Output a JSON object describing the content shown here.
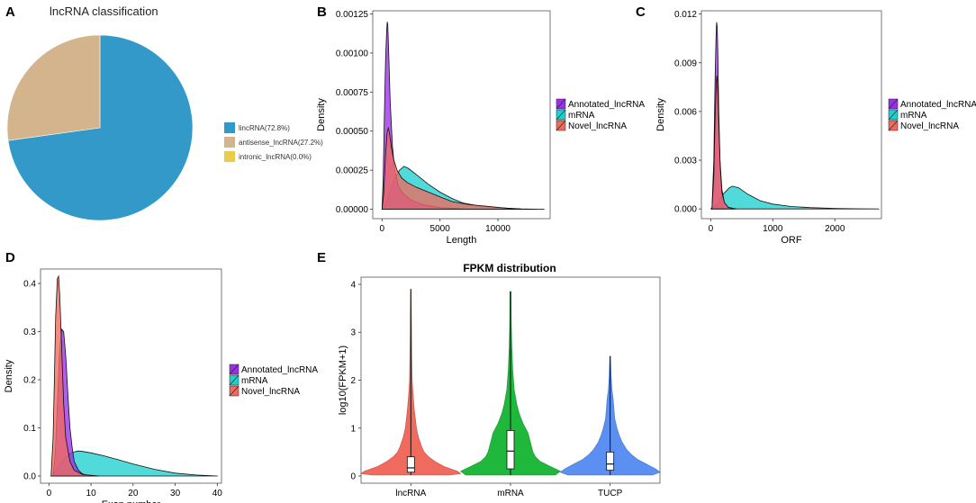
{
  "chart_data": [
    {
      "id": "A",
      "type": "pie",
      "panel_label": "A",
      "title": "lncRNA classification",
      "slices": [
        {
          "label": "lincRNA(72.8%)",
          "value": 72.8,
          "color": "#3399c9"
        },
        {
          "label": "antisense_lncRNA(27.2%)",
          "value": 27.2,
          "color": "#d4b48c"
        },
        {
          "label": "intronic_lncRNA(0.0%)",
          "value": 0.0,
          "color": "#e8cc4a"
        }
      ],
      "legend_position": "right"
    },
    {
      "id": "B",
      "type": "area",
      "panel_label": "B",
      "xlabel": "Length",
      "ylabel": "Density",
      "xlim": [
        -800,
        14500
      ],
      "ylim": [
        -6e-05,
        0.00127
      ],
      "xticks": [
        0,
        5000,
        10000
      ],
      "xtick_labels": [
        "0",
        "5000",
        "10000"
      ],
      "yticks": [
        0,
        0.00025,
        0.0005,
        0.00075,
        0.001,
        0.00125
      ],
      "ytick_labels": [
        "0.00000",
        "0.00025",
        "0.00050",
        "0.00075",
        "0.00100",
        "0.00125"
      ],
      "legend": [
        "Annotated_lncRNA",
        "mRNA",
        "Novel_lncRNA"
      ],
      "legend_position": "right",
      "series": [
        {
          "name": "mRNA",
          "color": "#1fcfcf",
          "x": [
            0,
            300,
            700,
            1000,
            1500,
            1900,
            2300,
            3000,
            4000,
            5000,
            6000,
            7000,
            8500,
            10000,
            12000,
            14000
          ],
          "y": [
            0,
            3e-05,
            0.00012,
            0.00018,
            0.00025,
            0.000275,
            0.00026,
            0.00022,
            0.00016,
            0.00011,
            7e-05,
            4e-05,
            2e-05,
            1e-05,
            3e-06,
            0
          ]
        },
        {
          "name": "Annotated_lncRNA",
          "color": "#9b30e8",
          "x": [
            0,
            100,
            200,
            300,
            400,
            450,
            500,
            600,
            700,
            900,
            1100,
            1400,
            1800,
            2500,
            3500,
            5000,
            7000,
            9000
          ],
          "y": [
            0,
            0.0002,
            0.0006,
            0.00095,
            0.00115,
            0.0012,
            0.00118,
            0.00095,
            0.0007,
            0.0004,
            0.00025,
            0.00015,
            0.0001,
            6e-05,
            3e-05,
            1e-05,
            3e-06,
            0
          ]
        },
        {
          "name": "Novel_lncRNA",
          "color": "#f06a5e",
          "x": [
            0,
            150,
            300,
            450,
            550,
            650,
            800,
            1000,
            1300,
            1700,
            2200,
            3000,
            4000,
            5000,
            6000,
            7500,
            9000,
            11000,
            12500
          ],
          "y": [
            0,
            0.0001,
            0.00035,
            0.0005,
            0.00052,
            0.00048,
            0.0004,
            0.00032,
            0.00025,
            0.0002,
            0.00017,
            0.00014,
            0.00011,
            8e-05,
            5e-05,
            3e-05,
            2e-05,
            5e-06,
            0
          ]
        }
      ]
    },
    {
      "id": "C",
      "type": "area",
      "panel_label": "C",
      "xlabel": "ORF",
      "ylabel": "Density",
      "xlim": [
        -150,
        2750
      ],
      "ylim": [
        -0.0006,
        0.0122
      ],
      "xticks": [
        0,
        1000,
        2000
      ],
      "xtick_labels": [
        "0",
        "1000",
        "2000"
      ],
      "yticks": [
        0,
        0.003,
        0.006,
        0.009,
        0.012
      ],
      "ytick_labels": [
        "0.000",
        "0.003",
        "0.006",
        "0.009",
        "0.012"
      ],
      "legend": [
        "Annotated_lncRNA",
        "mRNA",
        "Novel_lncRNA"
      ],
      "legend_position": "right",
      "series": [
        {
          "name": "mRNA",
          "color": "#1fcfcf",
          "x": [
            0,
            100,
            200,
            300,
            350,
            450,
            600,
            800,
            1000,
            1300,
            1600,
            2000,
            2400,
            2700
          ],
          "y": [
            0,
            0.0003,
            0.0009,
            0.0013,
            0.0014,
            0.0013,
            0.0009,
            0.0005,
            0.0003,
            0.00015,
            8e-05,
            3e-05,
            1e-05,
            0
          ]
        },
        {
          "name": "Annotated_lncRNA",
          "color": "#9b30e8",
          "x": [
            20,
            50,
            70,
            85,
            95,
            105,
            115,
            130,
            150,
            180,
            220,
            280,
            400
          ],
          "y": [
            0,
            0.003,
            0.008,
            0.0105,
            0.0115,
            0.0112,
            0.0095,
            0.006,
            0.003,
            0.0012,
            0.0004,
            0.0001,
            0
          ]
        },
        {
          "name": "Novel_lncRNA",
          "color": "#f06a5e",
          "x": [
            20,
            50,
            70,
            90,
            100,
            110,
            120,
            135,
            155,
            180,
            220,
            280,
            400
          ],
          "y": [
            0,
            0.002,
            0.0055,
            0.0078,
            0.0082,
            0.0078,
            0.0065,
            0.0045,
            0.0025,
            0.001,
            0.0004,
            0.0001,
            0
          ]
        }
      ]
    },
    {
      "id": "D",
      "type": "area",
      "panel_label": "D",
      "xlabel": "Exon number",
      "ylabel": "Density",
      "xlim": [
        -2,
        41
      ],
      "ylim": [
        -0.015,
        0.43
      ],
      "xticks": [
        0,
        10,
        20,
        30,
        40
      ],
      "xtick_labels": [
        "0",
        "10",
        "20",
        "30",
        "40"
      ],
      "yticks": [
        0,
        0.1,
        0.2,
        0.3,
        0.4
      ],
      "ytick_labels": [
        "0.0",
        "0.1",
        "0.2",
        "0.3",
        "0.4"
      ],
      "legend": [
        "Annotated_lncRNA",
        "mRNA",
        "Novel_lncRNA"
      ],
      "legend_position": "right",
      "series": [
        {
          "name": "mRNA",
          "color": "#1fcfcf",
          "x": [
            1,
            2,
            3,
            4,
            5,
            6,
            7,
            8,
            10,
            13,
            16,
            20,
            25,
            30,
            35,
            40
          ],
          "y": [
            0.005,
            0.015,
            0.03,
            0.04,
            0.046,
            0.05,
            0.052,
            0.051,
            0.048,
            0.042,
            0.035,
            0.025,
            0.014,
            0.006,
            0.002,
            0
          ]
        },
        {
          "name": "Annotated_lncRNA",
          "color": "#9b30e8",
          "x": [
            1,
            1.5,
            2,
            2.5,
            3,
            3.5,
            4,
            4.5,
            5,
            5.5,
            6,
            7,
            8,
            10
          ],
          "y": [
            0,
            0.05,
            0.15,
            0.25,
            0.305,
            0.3,
            0.25,
            0.17,
            0.1,
            0.06,
            0.03,
            0.012,
            0.004,
            0
          ]
        },
        {
          "name": "Novel_lncRNA",
          "color": "#f06a5e",
          "x": [
            0.5,
            1,
            1.3,
            1.6,
            2,
            2.3,
            2.6,
            3,
            3.5,
            4,
            5,
            6,
            8,
            12
          ],
          "y": [
            0,
            0.08,
            0.2,
            0.33,
            0.41,
            0.415,
            0.37,
            0.27,
            0.15,
            0.08,
            0.03,
            0.012,
            0.003,
            0
          ]
        }
      ]
    },
    {
      "id": "E",
      "type": "violin",
      "panel_label": "E",
      "title": "FPKM distribution",
      "ylabel": "log10(FPKM+1)",
      "categories": [
        "lncRNA",
        "mRNA",
        "TUCP"
      ],
      "ylim": [
        -0.15,
        4.15
      ],
      "yticks": [
        0,
        1,
        2,
        3,
        4
      ],
      "ytick_labels": [
        "0",
        "1",
        "2",
        "3",
        "4"
      ],
      "groups": [
        {
          "name": "lncRNA",
          "color": "#f06a5e",
          "max": 3.9,
          "q1": 0.08,
          "median": 0.17,
          "q3": 0.4,
          "whisker_low": 0.02,
          "whisker_high": 0.9,
          "profile_y": [
            0.02,
            0.05,
            0.1,
            0.2,
            0.3,
            0.4,
            0.5,
            0.6,
            0.8,
            1.0,
            1.2,
            1.4,
            1.7,
            2.0,
            2.5,
            3.0,
            3.5,
            3.9
          ],
          "profile_w": [
            0.35,
            0.45,
            0.42,
            0.3,
            0.22,
            0.16,
            0.12,
            0.1,
            0.07,
            0.05,
            0.04,
            0.03,
            0.02,
            0.012,
            0.008,
            0.006,
            0.004,
            0.002
          ]
        },
        {
          "name": "mRNA",
          "color": "#20b83c",
          "max": 3.85,
          "q1": 0.15,
          "median": 0.52,
          "q3": 0.95,
          "whisker_low": 0.02,
          "whisker_high": 1.6,
          "profile_y": [
            0.02,
            0.1,
            0.2,
            0.3,
            0.4,
            0.5,
            0.6,
            0.7,
            0.8,
            0.9,
            1.0,
            1.1,
            1.3,
            1.5,
            1.8,
            2.2,
            2.7,
            3.2,
            3.85
          ],
          "profile_w": [
            0.18,
            0.2,
            0.16,
            0.12,
            0.1,
            0.09,
            0.085,
            0.08,
            0.075,
            0.07,
            0.06,
            0.05,
            0.035,
            0.025,
            0.015,
            0.009,
            0.005,
            0.003,
            0.002
          ]
        },
        {
          "name": "TUCP",
          "color": "#5b8ff2",
          "max": 2.5,
          "q1": 0.12,
          "median": 0.25,
          "q3": 0.5,
          "whisker_low": 0.02,
          "whisker_high": 1.0,
          "profile_y": [
            0.02,
            0.08,
            0.15,
            0.25,
            0.35,
            0.45,
            0.55,
            0.7,
            0.85,
            1.0,
            1.2,
            1.4,
            1.6,
            1.8,
            2.1,
            2.5
          ],
          "profile_w": [
            0.28,
            0.33,
            0.3,
            0.24,
            0.18,
            0.14,
            0.11,
            0.08,
            0.06,
            0.045,
            0.03,
            0.025,
            0.02,
            0.012,
            0.006,
            0.002
          ]
        }
      ]
    }
  ]
}
